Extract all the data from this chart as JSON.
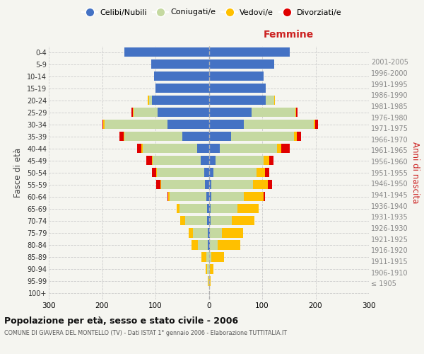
{
  "age_groups": [
    "100+",
    "95-99",
    "90-94",
    "85-89",
    "80-84",
    "75-79",
    "70-74",
    "65-69",
    "60-64",
    "55-59",
    "50-54",
    "45-49",
    "40-44",
    "35-39",
    "30-34",
    "25-29",
    "20-24",
    "15-19",
    "10-14",
    "5-9",
    "0-4"
  ],
  "birth_years": [
    "≤ 1905",
    "1906-1910",
    "1911-1915",
    "1916-1920",
    "1921-1925",
    "1926-1930",
    "1931-1935",
    "1936-1940",
    "1941-1945",
    "1946-1950",
    "1951-1955",
    "1956-1960",
    "1961-1965",
    "1966-1970",
    "1971-1975",
    "1976-1980",
    "1981-1985",
    "1986-1990",
    "1991-1995",
    "1996-2000",
    "2001-2005"
  ],
  "males_celibi": [
    0,
    0,
    0,
    0,
    2,
    2,
    3,
    3,
    5,
    7,
    9,
    15,
    22,
    50,
    78,
    96,
    107,
    100,
    102,
    108,
    158
  ],
  "males_coniugati": [
    0,
    1,
    3,
    5,
    18,
    28,
    42,
    52,
    68,
    82,
    88,
    90,
    102,
    108,
    118,
    45,
    5,
    0,
    0,
    0,
    0
  ],
  "males_vedovi": [
    0,
    1,
    3,
    9,
    12,
    8,
    8,
    5,
    3,
    2,
    2,
    2,
    2,
    2,
    2,
    2,
    2,
    0,
    0,
    0,
    0
  ],
  "males_divorziati": [
    0,
    0,
    0,
    0,
    0,
    0,
    0,
    0,
    2,
    8,
    8,
    10,
    8,
    8,
    2,
    2,
    0,
    0,
    0,
    0,
    0
  ],
  "females_nubili": [
    0,
    0,
    0,
    0,
    2,
    2,
    3,
    3,
    5,
    5,
    8,
    13,
    20,
    42,
    65,
    80,
    107,
    107,
    102,
    122,
    152
  ],
  "females_coniugate": [
    0,
    1,
    2,
    5,
    15,
    22,
    40,
    50,
    60,
    78,
    82,
    90,
    108,
    118,
    132,
    82,
    15,
    0,
    0,
    0,
    0
  ],
  "females_vedove": [
    0,
    2,
    6,
    24,
    42,
    40,
    42,
    40,
    38,
    28,
    15,
    10,
    8,
    5,
    2,
    2,
    2,
    0,
    0,
    0,
    0
  ],
  "females_divorziate": [
    0,
    0,
    0,
    0,
    0,
    0,
    0,
    0,
    2,
    8,
    8,
    8,
    15,
    8,
    5,
    2,
    0,
    0,
    0,
    0,
    0
  ],
  "color_celibi": "#4472c4",
  "color_coniugati": "#c5d9a1",
  "color_vedovi": "#ffc000",
  "color_divorziati": "#e00000",
  "xlim": 300,
  "title": "Popolazione per età, sesso e stato civile - 2006",
  "subtitle": "COMUNE DI GIAVERA DEL MONTELLO (TV) - Dati ISTAT 1° gennaio 2006 - Elaborazione TUTTITALIA.IT",
  "ylabel": "Fasce di età",
  "ylabel_right": "Anni di nascita",
  "xlabel_right": "Femmine",
  "bg_color": "#f5f5f0",
  "grid_color": "#cccccc"
}
